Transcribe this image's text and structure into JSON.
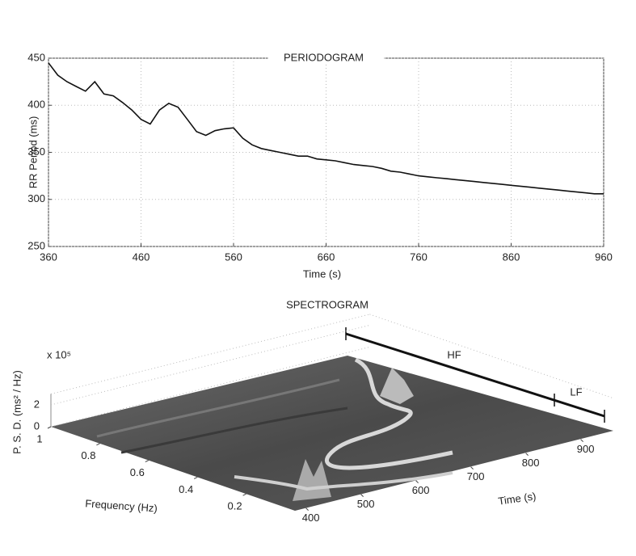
{
  "chart_data": [
    {
      "type": "line",
      "title": "PERIODOGRAM",
      "xlabel": "Time (s)",
      "ylabel": "RR Period (ms)",
      "x": [
        360,
        370,
        380,
        390,
        400,
        410,
        420,
        430,
        440,
        450,
        460,
        470,
        480,
        490,
        500,
        510,
        520,
        530,
        540,
        550,
        560,
        570,
        580,
        590,
        600,
        610,
        620,
        630,
        640,
        650,
        660,
        670,
        680,
        690,
        700,
        710,
        720,
        730,
        740,
        750,
        760,
        770,
        780,
        790,
        800,
        810,
        820,
        830,
        840,
        850,
        860,
        870,
        880,
        890,
        900,
        910,
        920,
        930,
        940,
        950,
        960
      ],
      "values": [
        445,
        432,
        425,
        420,
        415,
        425,
        412,
        410,
        403,
        395,
        385,
        380,
        395,
        402,
        398,
        385,
        372,
        368,
        373,
        375,
        376,
        365,
        358,
        354,
        352,
        350,
        348,
        346,
        346,
        343,
        342,
        341,
        339,
        337,
        336,
        335,
        333,
        330,
        329,
        327,
        325,
        324,
        323,
        322,
        321,
        320,
        319,
        318,
        317,
        316,
        315,
        314,
        313,
        312,
        311,
        310,
        309,
        308,
        307,
        306,
        306
      ],
      "color": "#111111",
      "xlim": [
        360,
        960
      ],
      "xticks": [
        360,
        460,
        560,
        660,
        760,
        860,
        960
      ],
      "ylim": [
        250,
        450
      ],
      "yticks": [
        250,
        300,
        350,
        400,
        450
      ],
      "grid": true
    },
    {
      "type": "surface",
      "title": "SPECTROGRAM",
      "xlabel": "Frequency (Hz)",
      "ylabel": "Time (s)",
      "zlabel": "P. S. D. (ms² / Hz)",
      "zmultiplier": "x 10⁵",
      "xlim": [
        0,
        1
      ],
      "xticks": [
        0.2,
        0.4,
        0.6,
        0.8,
        1
      ],
      "ylim": [
        380,
        960
      ],
      "yticks": [
        400,
        500,
        600,
        700,
        800,
        900
      ],
      "zlim": [
        0,
        3
      ],
      "zticks": [
        0,
        2
      ],
      "annotations": [
        "HF",
        "LF"
      ]
    }
  ]
}
